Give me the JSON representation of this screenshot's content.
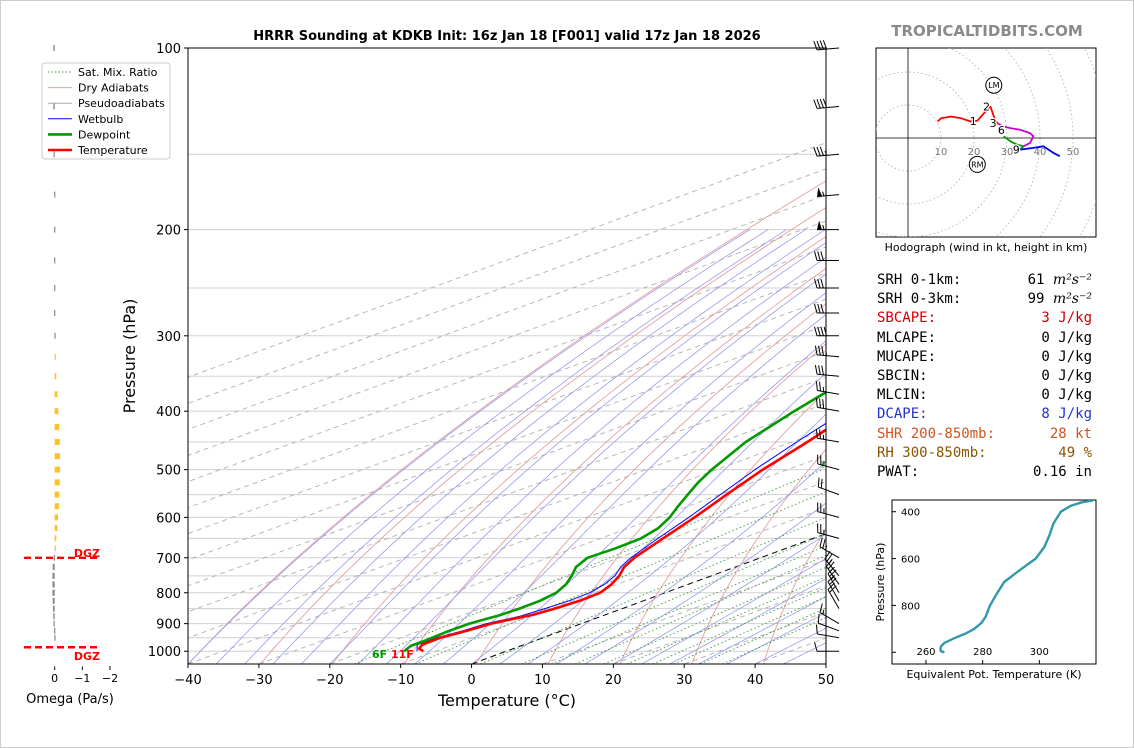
{
  "chart_data": [
    {
      "type": "line",
      "subtype": "skew-t log-p sounding",
      "title": "HRRR Sounding at KDKB Init: 16z Jan 18 [F001] valid 17z Jan 18 2026",
      "xlabel": "Temperature (°C)",
      "ylabel": "Pressure (hPa)",
      "xlim": [
        -40,
        50
      ],
      "ylim": [
        1050,
        100
      ],
      "y_scale": "log",
      "x_ticks": [
        "−40",
        "−30",
        "−20",
        "−10",
        "0",
        "10",
        "20",
        "30",
        "40",
        "50"
      ],
      "y_ticks": [
        "100",
        "200",
        "300",
        "400",
        "500",
        "600",
        "700",
        "800",
        "900",
        "1000"
      ],
      "legend": [
        "Sat. Mix. Ratio",
        "Dry Adiabats",
        "Pseudoadiabats",
        "Wetbulb",
        "Dewpoint",
        "Temperature"
      ],
      "legend_position": "top-left",
      "mixing_ratio_labels": [
        "1",
        "2",
        "4",
        "6",
        "8",
        "10",
        "13",
        "16",
        "20",
        "24",
        "30",
        "36"
      ],
      "mixing_ratio_values": [
        1,
        2,
        4,
        6,
        8,
        10,
        13,
        16,
        20,
        24,
        30,
        36
      ],
      "surface_labels": {
        "dewpoint": "6F",
        "temperature": "11F"
      },
      "series": [
        {
          "name": "Temperature",
          "color": "#ff0000",
          "points": [
            [
              1000,
              -11.7
            ],
            [
              990,
              -13.3
            ],
            [
              975,
              -14.4
            ],
            [
              950,
              -14.5
            ],
            [
              925,
              -13.4
            ],
            [
              900,
              -12.7
            ],
            [
              870,
              -10.2
            ],
            [
              850,
              -9.5
            ],
            [
              825,
              -9.0
            ],
            [
              800,
              -9.2
            ],
            [
              775,
              -10.8
            ],
            [
              750,
              -13.0
            ],
            [
              725,
              -15.7
            ],
            [
              700,
              -17.8
            ],
            [
              650,
              -21.2
            ],
            [
              600,
              -24.8
            ],
            [
              550,
              -29.0
            ],
            [
              500,
              -33.5
            ],
            [
              450,
              -37.8
            ],
            [
              400,
              -43.0
            ],
            [
              350,
              -49.0
            ],
            [
              325,
              -52.8
            ],
            [
              300,
              -55.0
            ],
            [
              275,
              -56.0
            ],
            [
              250,
              -56.0
            ],
            [
              225,
              -54.0
            ],
            [
              200,
              -54.8
            ],
            [
              175,
              -55.0
            ],
            [
              150,
              -55.5
            ],
            [
              130,
              -52.0
            ],
            [
              115,
              -51.5
            ],
            [
              100,
              -50.5
            ]
          ]
        },
        {
          "name": "Dewpoint",
          "color": "#009900",
          "points": [
            [
              1000,
              -14.4
            ],
            [
              980,
              -15.5
            ],
            [
              960,
              -15.5
            ],
            [
              925,
              -15.9
            ],
            [
              900,
              -15.8
            ],
            [
              870,
              -14.7
            ],
            [
              850,
              -14.5
            ],
            [
              825,
              -14.6
            ],
            [
              800,
              -15.4
            ],
            [
              775,
              -17.2
            ],
            [
              750,
              -19.7
            ],
            [
              725,
              -22.5
            ],
            [
              700,
              -24.4
            ],
            [
              675,
              -24.1
            ],
            [
              650,
              -24.3
            ],
            [
              625,
              -25.8
            ],
            [
              600,
              -28.3
            ],
            [
              575,
              -31.4
            ],
            [
              550,
              -34.5
            ],
            [
              525,
              -37.7
            ],
            [
              500,
              -40.7
            ],
            [
              450,
              -46.5
            ],
            [
              400,
              -51.5
            ],
            [
              370,
              -54.5
            ],
            [
              340,
              -59.0
            ],
            [
              320,
              -62.0
            ],
            [
              300,
              -64.0
            ],
            [
              275,
              -67.5
            ],
            [
              250,
              -69.5
            ],
            [
              225,
              -71.5
            ],
            [
              200,
              -73.5
            ],
            [
              175,
              -77.0
            ],
            [
              150,
              -81.0
            ],
            [
              125,
              -84.0
            ],
            [
              100,
              -88.0
            ]
          ]
        },
        {
          "name": "Wetbulb",
          "color": "#0000ff",
          "points": [
            [
              1000,
              -12.6
            ],
            [
              975,
              -15.1
            ],
            [
              950,
              -15.0
            ],
            [
              925,
              -14.0
            ],
            [
              900,
              -13.4
            ],
            [
              875,
              -11.5
            ],
            [
              850,
              -10.9
            ],
            [
              825,
              -10.5
            ],
            [
              800,
              -10.7
            ],
            [
              775,
              -11.8
            ],
            [
              750,
              -13.6
            ],
            [
              725,
              -16.2
            ],
            [
              700,
              -18.3
            ],
            [
              650,
              -21.9
            ],
            [
              600,
              -25.6
            ],
            [
              550,
              -29.9
            ],
            [
              500,
              -34.6
            ],
            [
              450,
              -39.3
            ],
            [
              400,
              -44.3
            ],
            [
              350,
              -50.0
            ],
            [
              325,
              -53.5
            ],
            [
              300,
              -55.8
            ],
            [
              275,
              -56.5
            ],
            [
              250,
              -56.5
            ],
            [
              225,
              -54.5
            ],
            [
              200,
              -55.2
            ],
            [
              175,
              -55.5
            ],
            [
              150,
              -56.0
            ],
            [
              130,
              -52.6
            ],
            [
              115,
              -52.0
            ],
            [
              100,
              -51.0
            ]
          ]
        }
      ]
    },
    {
      "type": "line",
      "subtype": "hodograph",
      "title": "Hodograph (wind in kt, height in km)",
      "ring_labels": [
        "10",
        "20",
        "30",
        "40",
        "50"
      ],
      "height_labels": [
        "1",
        "2",
        "3",
        "6",
        "9"
      ],
      "markers": [
        "LM",
        "RM"
      ],
      "markers_uv_kt": {
        "LM": [
          26,
          16
        ],
        "RM": [
          21,
          -8
        ]
      },
      "series": [
        {
          "name": "0-1 km",
          "color": "#ff0000",
          "uv_kt": [
            [
              9,
              5
            ],
            [
              10,
              6
            ],
            [
              13,
              6.5
            ],
            [
              16,
              6
            ],
            [
              19,
              5
            ],
            [
              21,
              5.2
            ]
          ]
        },
        {
          "name": "1-3 km",
          "color": "#ff0000",
          "uv_kt": [
            [
              21,
              5.2
            ],
            [
              23,
              7.5
            ],
            [
              25,
              9.5
            ],
            [
              26,
              6.5
            ],
            [
              27,
              4.5
            ]
          ]
        },
        {
          "name": "3-6 km",
          "color": "#cc00cc",
          "uv_kt": [
            [
              27,
              4.5
            ],
            [
              29,
              3.5
            ],
            [
              31,
              3
            ],
            [
              34,
              2.5
            ],
            [
              37,
              1.5
            ],
            [
              38,
              0.5
            ],
            [
              37,
              -1.5
            ],
            [
              35,
              -2.5
            ]
          ]
        },
        {
          "name": "6-9 km",
          "color": "#009900",
          "uv_kt": [
            [
              29,
              0.5
            ],
            [
              31,
              -1
            ],
            [
              33,
              -2
            ],
            [
              35,
              -2.5
            ],
            [
              34,
              -3.5
            ]
          ]
        },
        {
          "name": "9+ km",
          "color": "#0000ff",
          "uv_kt": [
            [
              34,
              -3.5
            ],
            [
              38,
              -3
            ],
            [
              41,
              -2.5
            ],
            [
              44,
              -4.5
            ],
            [
              46,
              -5.5
            ]
          ]
        }
      ]
    },
    {
      "type": "line",
      "subtype": "theta-e profile",
      "xlabel": "Equivalent Pot. Temperature (K)",
      "ylabel": "Pressure (hPa)",
      "x_ticks": [
        "260",
        "280",
        "300"
      ],
      "y_ticks": [
        "400",
        "600",
        "800"
      ],
      "xlim": [
        248,
        320
      ],
      "ylim": [
        1050,
        350
      ],
      "series": [
        {
          "name": "Theta-E",
          "color": "#3399aa",
          "points": [
            [
              1000,
              266.5
            ],
            [
              995,
              265.2
            ],
            [
              985,
              265.1
            ],
            [
              975,
              265.3
            ],
            [
              960,
              266.5
            ],
            [
              940,
              270
            ],
            [
              920,
              274
            ],
            [
              900,
              277
            ],
            [
              875,
              279.5
            ],
            [
              850,
              281.0
            ],
            [
              800,
              282.6
            ],
            [
              750,
              285.0
            ],
            [
              700,
              287.6
            ],
            [
              650,
              293.0
            ],
            [
              600,
              298.7
            ],
            [
              550,
              301.8
            ],
            [
              500,
              303.6
            ],
            [
              450,
              305.0
            ],
            [
              400,
              307.6
            ],
            [
              375,
              311.0
            ],
            [
              360,
              315.0
            ],
            [
              352,
              319.0
            ]
          ]
        }
      ]
    },
    {
      "type": "bar",
      "subtype": "omega profile",
      "xlabel": "Omega (Pa/s)",
      "x_ticks": [
        "0",
        "−1",
        "−2"
      ],
      "xlim": [
        1,
        -2
      ],
      "dgz_label": "DGZ",
      "dgz_hpa": [
        700,
        985
      ],
      "pressure_hpa": [
        100,
        125,
        150,
        175,
        200,
        225,
        250,
        275,
        300,
        325,
        350,
        375,
        400,
        425,
        450,
        475,
        500,
        525,
        550,
        575,
        600,
        625,
        650,
        675,
        700,
        725,
        750,
        775,
        800,
        825,
        850,
        875,
        900,
        925,
        950
      ],
      "omega_pa_s": [
        0.05,
        0.05,
        0.04,
        0.02,
        0.02,
        0.02,
        0.02,
        0.02,
        0.01,
        -0.03,
        -0.06,
        -0.1,
        -0.13,
        -0.16,
        -0.18,
        -0.19,
        -0.19,
        -0.18,
        -0.16,
        -0.15,
        -0.12,
        -0.1,
        -0.06,
        -0.04,
        0.03,
        0.07,
        0.08,
        0.08,
        0.08,
        0.07,
        0.06,
        0.05,
        0.04,
        0.02,
        0.01
      ]
    }
  ],
  "brand": "TROPICALTIDBITS.COM",
  "indices": [
    {
      "label": "SRH 0-1km:",
      "value": "61",
      "unit": "m²s⁻²",
      "color": "#000000"
    },
    {
      "label": "SRH 0-3km:",
      "value": "99",
      "unit": "m²s⁻²",
      "color": "#000000"
    },
    {
      "label": "SBCAPE:",
      "value": "3 J/kg",
      "color": "#cc0000"
    },
    {
      "label": "MLCAPE:",
      "value": "0 J/kg",
      "color": "#000000"
    },
    {
      "label": "MUCAPE:",
      "value": "0 J/kg",
      "color": "#000000"
    },
    {
      "label": "SBCIN:",
      "value": "0 J/kg",
      "color": "#000000"
    },
    {
      "label": "MLCIN:",
      "value": "0 J/kg",
      "color": "#000000"
    },
    {
      "label": "DCAPE:",
      "value": "8 J/kg",
      "color": "#2233cc"
    },
    {
      "label": "SHR 200-850mb:",
      "value": "28 kt",
      "color": "#cc5522"
    },
    {
      "label": "RH 300-850mb:",
      "value": "49 %",
      "color": "#885500"
    },
    {
      "label": "PWAT:",
      "value": "0.16 in",
      "color": "#000000"
    }
  ],
  "wind_barbs": [
    {
      "p": 100,
      "dir": 265,
      "spd": 40
    },
    {
      "p": 125,
      "dir": 265,
      "spd": 40
    },
    {
      "p": 150,
      "dir": 265,
      "spd": 35
    },
    {
      "p": 175,
      "dir": 265,
      "spd": 55
    },
    {
      "p": 200,
      "dir": 270,
      "spd": 55
    },
    {
      "p": 225,
      "dir": 270,
      "spd": 30
    },
    {
      "p": 250,
      "dir": 270,
      "spd": 30
    },
    {
      "p": 275,
      "dir": 270,
      "spd": 30
    },
    {
      "p": 300,
      "dir": 270,
      "spd": 40
    },
    {
      "p": 325,
      "dir": 275,
      "spd": 35
    },
    {
      "p": 350,
      "dir": 275,
      "spd": 30
    },
    {
      "p": 375,
      "dir": 280,
      "spd": 25
    },
    {
      "p": 400,
      "dir": 280,
      "spd": 30
    },
    {
      "p": 450,
      "dir": 280,
      "spd": 25
    },
    {
      "p": 500,
      "dir": 285,
      "spd": 25
    },
    {
      "p": 550,
      "dir": 290,
      "spd": 20
    },
    {
      "p": 600,
      "dir": 285,
      "spd": 25
    },
    {
      "p": 650,
      "dir": 285,
      "spd": 25
    },
    {
      "p": 700,
      "dir": 300,
      "spd": 25
    },
    {
      "p": 750,
      "dir": 320,
      "spd": 25
    },
    {
      "p": 775,
      "dir": 325,
      "spd": 25
    },
    {
      "p": 800,
      "dir": 330,
      "spd": 25
    },
    {
      "p": 825,
      "dir": 330,
      "spd": 20
    },
    {
      "p": 850,
      "dir": 330,
      "spd": 20
    },
    {
      "p": 900,
      "dir": 300,
      "spd": 15
    },
    {
      "p": 925,
      "dir": 290,
      "spd": 10
    },
    {
      "p": 950,
      "dir": 280,
      "spd": 10
    },
    {
      "p": 1000,
      "dir": 270,
      "spd": 10
    }
  ]
}
